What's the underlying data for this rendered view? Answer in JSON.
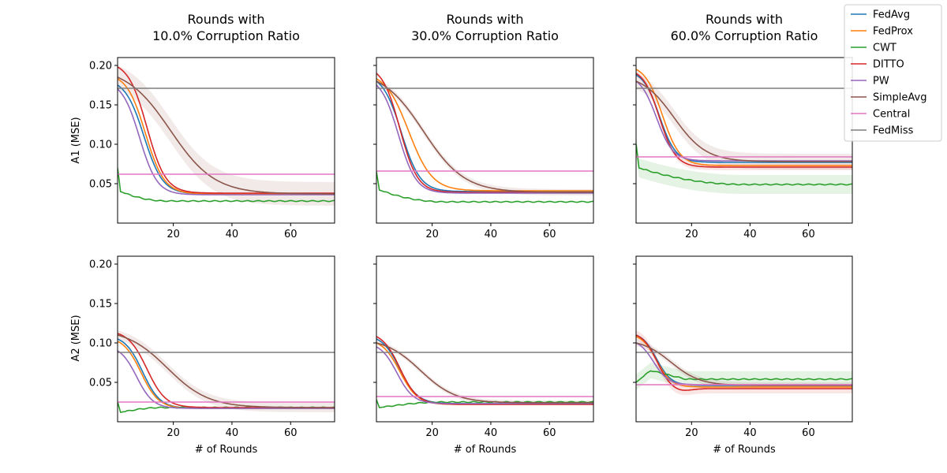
{
  "figure": {
    "row_ylabels": [
      "A1 (MSE)",
      "A2 (MSE)"
    ],
    "xlabel": "# of Rounds"
  },
  "legend": {
    "placement": "top-right",
    "entries": [
      {
        "name": "FedAvg",
        "color": "#1f77b4"
      },
      {
        "name": "FedProx",
        "color": "#ff7f0e"
      },
      {
        "name": "CWT",
        "color": "#2ca02c"
      },
      {
        "name": "DITTO",
        "color": "#d62728"
      },
      {
        "name": "PW",
        "color": "#9467bd"
      },
      {
        "name": "SimpleAvg",
        "color": "#8c564b"
      },
      {
        "name": "Central",
        "color": "#e377c2"
      },
      {
        "name": "FedMiss",
        "color": "#7f7f7f"
      }
    ]
  },
  "chart_data": [
    {
      "type": "line",
      "title": "Rounds with\n10.0% Corruption Ratio",
      "ylabel": "A1 (MSE)",
      "xlabel": "",
      "xlim": [
        1,
        75
      ],
      "ylim": [
        0,
        0.21
      ],
      "xticks": [
        20,
        40,
        60
      ],
      "yticks": [
        0.05,
        0.1,
        0.15,
        0.2
      ],
      "series": [
        {
          "name": "FedAvg",
          "start": 0.175,
          "end": 0.037,
          "mid": 10,
          "width": 3.2
        },
        {
          "name": "FedProx",
          "start": 0.183,
          "end": 0.037,
          "mid": 10.5,
          "width": 3.2
        },
        {
          "name": "CWT",
          "start": 0.07,
          "jump": 0.04,
          "end": 0.028,
          "kink": 18
        },
        {
          "name": "DITTO",
          "start": 0.198,
          "end": 0.038,
          "mid": 11,
          "width": 3.2
        },
        {
          "name": "PW",
          "start": 0.17,
          "end": 0.036,
          "mid": 8.5,
          "width": 3.0
        },
        {
          "name": "SimpleAvg",
          "start": 0.185,
          "end": 0.037,
          "mid": 19,
          "width": 7.5,
          "band": 0.015
        },
        {
          "name": "Central",
          "const": 0.062
        },
        {
          "name": "FedMiss",
          "const": 0.171
        }
      ]
    },
    {
      "type": "line",
      "title": "Rounds with\n30.0% Corruption Ratio",
      "ylabel": "",
      "xlabel": "",
      "xlim": [
        1,
        75
      ],
      "ylim": [
        0,
        0.21
      ],
      "xticks": [
        20,
        40,
        60
      ],
      "yticks": [
        0.05,
        0.1,
        0.15,
        0.2
      ],
      "series": [
        {
          "name": "FedAvg",
          "start": 0.18,
          "end": 0.04,
          "mid": 9.5,
          "width": 3.2
        },
        {
          "name": "FedProx",
          "start": 0.183,
          "end": 0.041,
          "mid": 12,
          "width": 4.0
        },
        {
          "name": "CWT",
          "start": 0.065,
          "jump": 0.042,
          "end": 0.027,
          "kink": 24
        },
        {
          "name": "DITTO",
          "start": 0.19,
          "end": 0.039,
          "mid": 9,
          "width": 3.0
        },
        {
          "name": "PW",
          "start": 0.175,
          "end": 0.038,
          "mid": 8.5,
          "width": 3.0
        },
        {
          "name": "SimpleAvg",
          "start": 0.18,
          "end": 0.039,
          "mid": 17,
          "width": 7.0,
          "band": 0.004
        },
        {
          "name": "Central",
          "const": 0.066
        },
        {
          "name": "FedMiss",
          "const": 0.171
        }
      ]
    },
    {
      "type": "line",
      "title": "Rounds with\n60.0% Corruption Ratio",
      "ylabel": "",
      "xlabel": "",
      "xlim": [
        1,
        75
      ],
      "ylim": [
        0,
        0.21
      ],
      "xticks": [
        20,
        40,
        60
      ],
      "yticks": [
        0.05,
        0.1,
        0.15,
        0.2
      ],
      "series": [
        {
          "name": "FedAvg",
          "start": 0.188,
          "end": 0.077,
          "mid": 9,
          "width": 2.8
        },
        {
          "name": "FedProx",
          "start": 0.195,
          "end": 0.073,
          "mid": 10,
          "width": 3.0
        },
        {
          "name": "CWT",
          "start": 0.1,
          "jump": 0.07,
          "end": 0.049,
          "kink": 38,
          "band": 0.012
        },
        {
          "name": "DITTO",
          "start": 0.19,
          "end": 0.071,
          "mid": 9,
          "width": 2.8,
          "band": 0.004
        },
        {
          "name": "PW",
          "start": 0.18,
          "end": 0.079,
          "mid": 8,
          "width": 2.8
        },
        {
          "name": "SimpleAvg",
          "start": 0.18,
          "end": 0.078,
          "mid": 14,
          "width": 5.5,
          "band": 0.01
        },
        {
          "name": "Central",
          "const": 0.084
        },
        {
          "name": "FedMiss",
          "const": 0.171
        }
      ]
    },
    {
      "type": "line",
      "title": "",
      "ylabel": "A2 (MSE)",
      "xlabel": "# of Rounds",
      "xlim": [
        1,
        75
      ],
      "ylim": [
        0,
        0.21
      ],
      "xticks": [
        20,
        40,
        60
      ],
      "yticks": [
        0.05,
        0.1,
        0.15,
        0.2
      ],
      "series": [
        {
          "name": "FedAvg",
          "start": 0.105,
          "end": 0.017,
          "mid": 9.5,
          "width": 3.0
        },
        {
          "name": "FedProx",
          "start": 0.102,
          "end": 0.017,
          "mid": 9,
          "width": 3.0
        },
        {
          "name": "CWT",
          "start": 0.025,
          "dip": 0.012,
          "end": 0.018,
          "kink": 16
        },
        {
          "name": "DITTO",
          "start": 0.112,
          "end": 0.018,
          "mid": 11,
          "width": 3.2
        },
        {
          "name": "PW",
          "start": 0.09,
          "end": 0.017,
          "mid": 7.5,
          "width": 2.8
        },
        {
          "name": "SimpleAvg",
          "start": 0.11,
          "end": 0.018,
          "mid": 18,
          "width": 7.0,
          "band": 0.006
        },
        {
          "name": "Central",
          "const": 0.025
        },
        {
          "name": "FedMiss",
          "const": 0.088
        }
      ]
    },
    {
      "type": "line",
      "title": "",
      "ylabel": "",
      "xlabel": "# of Rounds",
      "xlim": [
        1,
        75
      ],
      "ylim": [
        0,
        0.21
      ],
      "xticks": [
        20,
        40,
        60
      ],
      "yticks": [
        0.05,
        0.1,
        0.15,
        0.2
      ],
      "series": [
        {
          "name": "FedAvg",
          "start": 0.105,
          "end": 0.023,
          "mid": 9,
          "width": 3.0
        },
        {
          "name": "FedProx",
          "start": 0.1,
          "end": 0.022,
          "mid": 9,
          "width": 3.0
        },
        {
          "name": "CWT",
          "start": 0.028,
          "dip": 0.018,
          "end": 0.025,
          "kink": 24
        },
        {
          "name": "DITTO",
          "start": 0.108,
          "end": 0.022,
          "mid": 9,
          "width": 3.0
        },
        {
          "name": "PW",
          "start": 0.095,
          "end": 0.023,
          "mid": 8,
          "width": 2.8
        },
        {
          "name": "SimpleAvg",
          "start": 0.1,
          "end": 0.024,
          "mid": 16,
          "width": 6.0,
          "band": 0.003
        },
        {
          "name": "Central",
          "const": 0.032
        },
        {
          "name": "FedMiss",
          "const": 0.088
        }
      ]
    },
    {
      "type": "line",
      "title": "",
      "ylabel": "",
      "xlabel": "# of Rounds",
      "xlim": [
        1,
        75
      ],
      "ylim": [
        0,
        0.21
      ],
      "xticks": [
        20,
        40,
        60
      ],
      "yticks": [
        0.05,
        0.1,
        0.15,
        0.2
      ],
      "series": [
        {
          "name": "FedAvg",
          "start": 0.11,
          "end": 0.046,
          "mid": 8,
          "width": 2.5
        },
        {
          "name": "FedProx",
          "start": 0.108,
          "end": 0.044,
          "mid": 8,
          "width": 2.5
        },
        {
          "name": "CWT",
          "start": 0.05,
          "peak": 0.065,
          "end": 0.054,
          "kink": 6,
          "band": 0.01
        },
        {
          "name": "DITTO",
          "start": 0.11,
          "end": 0.042,
          "mid": 8,
          "width": 2.5,
          "undershoot": 0.038,
          "band": 0.006
        },
        {
          "name": "PW",
          "start": 0.1,
          "end": 0.047,
          "mid": 7,
          "width": 2.5
        },
        {
          "name": "SimpleAvg",
          "start": 0.1,
          "end": 0.046,
          "mid": 13,
          "width": 5.0,
          "band": 0.004
        },
        {
          "name": "Central",
          "const": 0.047
        },
        {
          "name": "FedMiss",
          "const": 0.088
        }
      ]
    }
  ]
}
